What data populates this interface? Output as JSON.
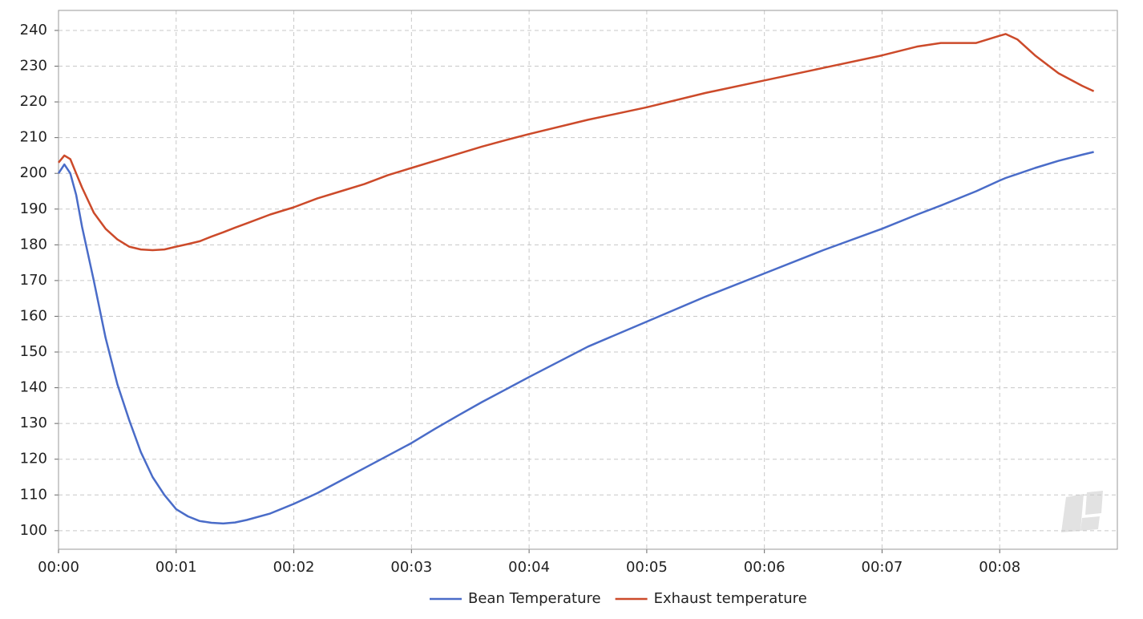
{
  "chart_data": {
    "type": "line",
    "x": [
      0,
      0.05,
      0.1,
      0.15,
      0.2,
      0.3,
      0.4,
      0.5,
      0.6,
      0.7,
      0.8,
      0.9,
      1.0,
      1.1,
      1.2,
      1.3,
      1.4,
      1.5,
      1.6,
      1.8,
      2.0,
      2.2,
      2.4,
      2.6,
      2.8,
      3.0,
      3.2,
      3.4,
      3.6,
      3.8,
      4.0,
      4.5,
      5.0,
      5.5,
      6.0,
      6.5,
      7.0,
      7.3,
      7.5,
      7.8,
      8.0,
      8.05,
      8.15,
      8.3,
      8.5,
      8.7,
      8.8
    ],
    "series": [
      {
        "name": "Bean Temperature",
        "color": "#4a6cc8",
        "values": [
          200,
          202.5,
          200,
          194,
          185,
          170,
          154,
          141,
          131,
          122,
          115,
          110,
          106,
          104,
          102.7,
          102.2,
          102,
          102.3,
          103,
          104.8,
          107.5,
          110.5,
          114,
          117.5,
          121,
          124.5,
          128.5,
          132.3,
          136,
          139.5,
          143,
          151.5,
          158.5,
          165.5,
          172,
          178.5,
          184.5,
          188.5,
          191,
          195,
          198,
          198.7,
          199.8,
          201.5,
          203.5,
          205.2,
          206
        ]
      },
      {
        "name": "Exhaust temperature",
        "color": "#cc4a2a",
        "values": [
          203,
          205,
          204,
          200,
          196,
          189,
          184.5,
          181.5,
          179.5,
          178.7,
          178.5,
          178.7,
          179.5,
          180.2,
          181,
          182.3,
          183.5,
          184.8,
          186,
          188.5,
          190.5,
          193,
          195,
          197,
          199.5,
          201.5,
          203.5,
          205.5,
          207.5,
          209.3,
          211,
          215,
          218.5,
          222.5,
          226,
          229.5,
          233,
          235.5,
          236.5,
          236.5,
          238.5,
          239,
          237.5,
          233,
          228,
          224.5,
          223
        ]
      }
    ],
    "xlim": [
      0,
      9
    ],
    "xticks": [
      {
        "value": 0,
        "label": "00:00"
      },
      {
        "value": 1,
        "label": "00:01"
      },
      {
        "value": 2,
        "label": "00:02"
      },
      {
        "value": 3,
        "label": "00:03"
      },
      {
        "value": 4,
        "label": "00:04"
      },
      {
        "value": 5,
        "label": "00:05"
      },
      {
        "value": 6,
        "label": "00:06"
      },
      {
        "value": 7,
        "label": "00:07"
      },
      {
        "value": 8,
        "label": "00:08"
      }
    ],
    "ylim": [
      94.8,
      245.6
    ],
    "yticks": [
      100,
      110,
      120,
      130,
      140,
      150,
      160,
      170,
      180,
      190,
      200,
      210,
      220,
      230,
      240
    ],
    "grid": true,
    "legend": "bottom"
  }
}
